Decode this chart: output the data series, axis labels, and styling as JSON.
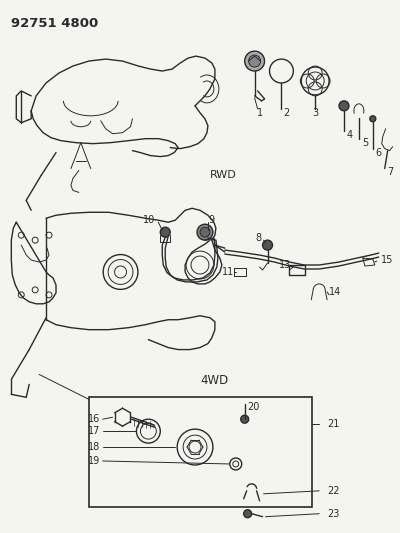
{
  "title": "92751 4800",
  "bg_color": "#f5f5f0",
  "line_color": "#2a2a2a",
  "label_color": "#1a1a1a",
  "rwd_label": "RWD",
  "fwd_label": "4WD"
}
